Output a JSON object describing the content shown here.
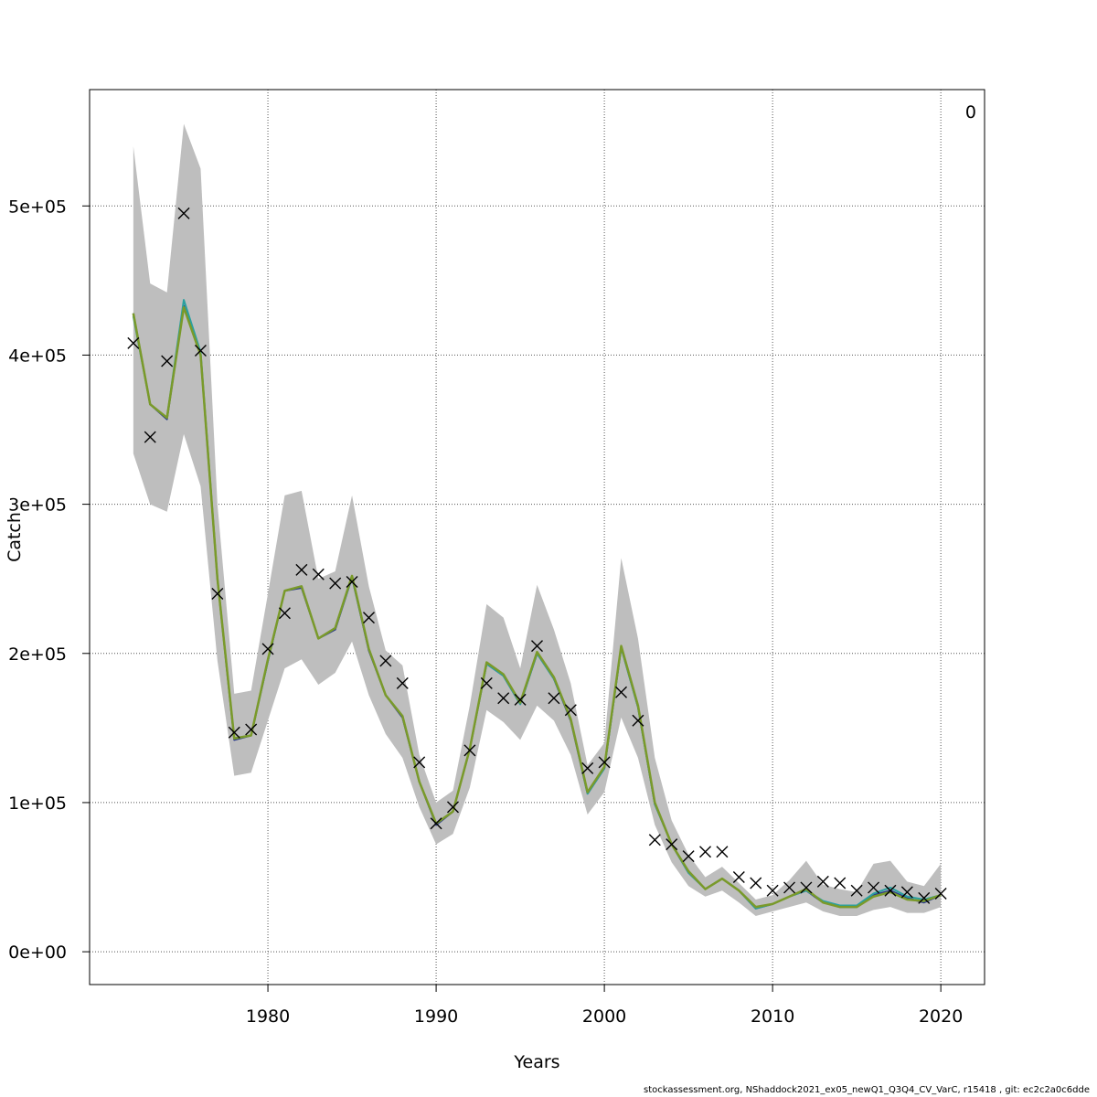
{
  "chart_data": {
    "type": "line",
    "title": "",
    "xlabel": "Years",
    "ylabel": "Catch",
    "corner_label": "0",
    "footer": "stockassessment.org, NShaddock2021_ex05_newQ1_Q3Q4_CV_VarC, r15418 , git: ec2c2a0c6dde",
    "xlim": [
      1969.4,
      2022.6
    ],
    "ylim": [
      -22000,
      578000
    ],
    "x_ticks": [
      1980,
      1990,
      2000,
      2010,
      2020
    ],
    "x_tick_labels": [
      "1980",
      "1990",
      "2000",
      "2010",
      "2020"
    ],
    "y_ticks": [
      0,
      100000,
      200000,
      300000,
      400000,
      500000
    ],
    "y_tick_labels": [
      "0e+00",
      "1e+05",
      "2e+05",
      "3e+05",
      "4e+05",
      "5e+05"
    ],
    "grid": true,
    "band_color": "#bebebe",
    "years": [
      1972,
      1973,
      1974,
      1975,
      1976,
      1977,
      1978,
      1979,
      1980,
      1981,
      1982,
      1983,
      1984,
      1985,
      1986,
      1987,
      1988,
      1989,
      1990,
      1991,
      1992,
      1993,
      1994,
      1995,
      1996,
      1997,
      1998,
      1999,
      2000,
      2001,
      2002,
      2003,
      2004,
      2005,
      2006,
      2007,
      2008,
      2009,
      2010,
      2011,
      2012,
      2013,
      2014,
      2015,
      2016,
      2017,
      2018,
      2019,
      2020
    ],
    "band_upper": [
      540000,
      448000,
      442000,
      555000,
      525000,
      300000,
      173000,
      175000,
      240000,
      306000,
      309000,
      250000,
      255000,
      306000,
      245000,
      202000,
      192000,
      132000,
      100000,
      108000,
      165000,
      233000,
      224000,
      190000,
      246000,
      216000,
      180000,
      125000,
      140000,
      264000,
      210000,
      130000,
      88000,
      65000,
      50000,
      57000,
      46000,
      35000,
      38000,
      48000,
      61000,
      45000,
      42000,
      40000,
      59000,
      61000,
      47000,
      44000,
      59000
    ],
    "band_lower": [
      334000,
      300000,
      295000,
      347000,
      312000,
      195000,
      118000,
      120000,
      155000,
      190000,
      196000,
      179000,
      187000,
      208000,
      172000,
      146000,
      130000,
      97000,
      72000,
      79000,
      110000,
      162000,
      154000,
      142000,
      165000,
      155000,
      132000,
      92000,
      107000,
      157000,
      130000,
      85000,
      60000,
      44000,
      37000,
      41000,
      33000,
      24000,
      27000,
      30000,
      33000,
      27000,
      24000,
      24000,
      28000,
      30000,
      26000,
      26000,
      30000
    ],
    "series": [
      {
        "values": [
          428000,
          367000,
          357000,
          433000,
          400000,
          250000,
          142000,
          145000,
          195000,
          242000,
          244000,
          210000,
          216000,
          251000,
          202000,
          172000,
          157000,
          114000,
          85000,
          94000,
          136000,
          193000,
          185000,
          166000,
          200000,
          183000,
          155000,
          106000,
          123000,
          204000,
          164000,
          99000,
          72000,
          53000,
          42000,
          49000,
          41000,
          29000,
          32000,
          37000,
          41000,
          33000,
          30000,
          30000,
          38000,
          41000,
          36000,
          33000,
          38000
        ],
        "color": "#2a3a8c"
      },
      {
        "values": [
          426000,
          367000,
          358000,
          437000,
          402000,
          250000,
          143000,
          145000,
          195000,
          242000,
          245000,
          210000,
          217000,
          251000,
          203000,
          172000,
          158000,
          114000,
          86000,
          94000,
          136000,
          193000,
          185000,
          166000,
          200000,
          183000,
          156000,
          106000,
          123000,
          204000,
          164000,
          99000,
          72000,
          53000,
          42000,
          49000,
          41000,
          29000,
          32000,
          37000,
          41000,
          34000,
          31000,
          31000,
          39000,
          43000,
          37000,
          35000,
          38000
        ],
        "color": "#2aa0a0"
      },
      {
        "values": [
          428000,
          367000,
          358000,
          432000,
          400000,
          250000,
          143000,
          145000,
          196000,
          242000,
          245000,
          210000,
          217000,
          252000,
          203000,
          172000,
          158000,
          114000,
          86000,
          94000,
          136000,
          194000,
          186000,
          167000,
          201000,
          184000,
          156000,
          107000,
          124000,
          205000,
          165000,
          100000,
          72000,
          54000,
          42000,
          49000,
          41000,
          30000,
          32000,
          37000,
          42000,
          33000,
          30000,
          30000,
          37000,
          40000,
          35000,
          34000,
          38000
        ],
        "color": "#7a9a2a"
      }
    ],
    "observed": [
      408000,
      345000,
      396000,
      495000,
      403000,
      240000,
      147000,
      149000,
      203000,
      227000,
      256000,
      253000,
      247000,
      248000,
      224000,
      195000,
      180000,
      127000,
      86000,
      97000,
      135000,
      180000,
      170000,
      169000,
      205000,
      170000,
      162000,
      123000,
      127000,
      174000,
      155000,
      75000,
      72000,
      64000,
      67000,
      67000,
      50000,
      46000,
      41000,
      43000,
      43000,
      47000,
      46000,
      41000,
      43000,
      41000,
      40000,
      36000,
      39000
    ],
    "observed_marker": "x",
    "observed_color": "#000000"
  }
}
